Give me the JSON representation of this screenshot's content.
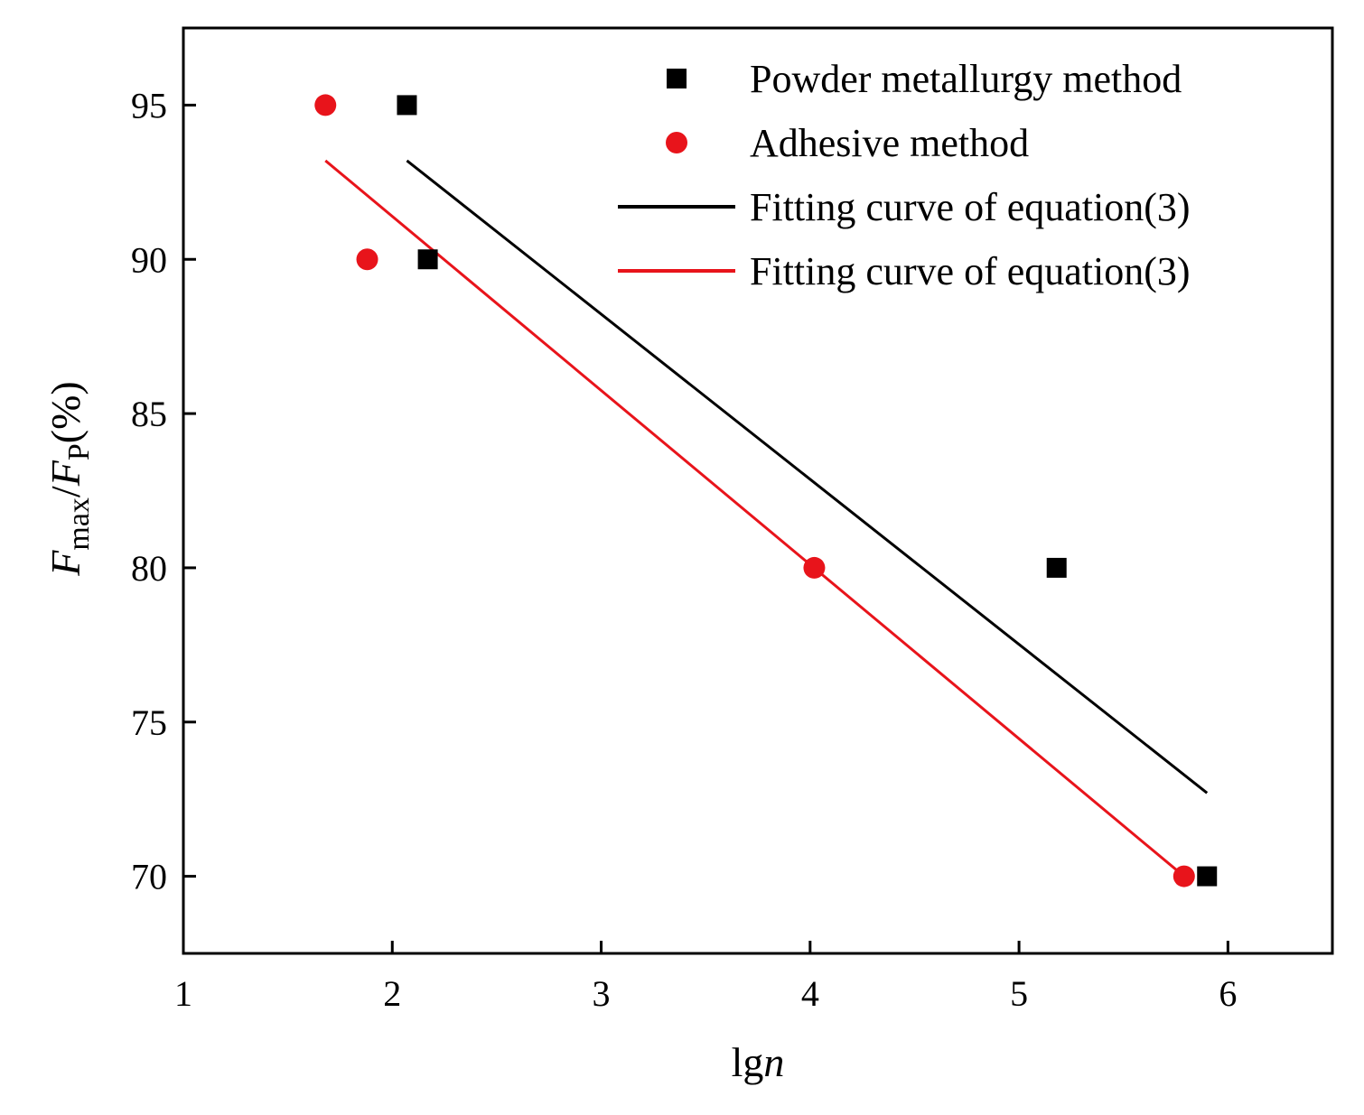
{
  "chart_data": {
    "type": "scatter",
    "title": "",
    "xlabel": {
      "main": "lg",
      "italic": "n"
    },
    "ylabel": {
      "f1": "F",
      "sub1": "max",
      "slash": "/",
      "f2": "F",
      "sub2": "P",
      "tail": "(%)"
    },
    "xlim": [
      1,
      6.5
    ],
    "ylim": [
      67.5,
      97.5
    ],
    "xticks": [
      1,
      2,
      3,
      4,
      5,
      6
    ],
    "yticks": [
      70,
      75,
      80,
      85,
      90,
      95
    ],
    "grid": false,
    "legend_position": "top-right",
    "series": [
      {
        "name": "Powder metallurgy method",
        "marker": "square",
        "color": "#000000",
        "points": [
          {
            "x": 2.07,
            "y": 95
          },
          {
            "x": 2.17,
            "y": 90
          },
          {
            "x": 5.18,
            "y": 80
          },
          {
            "x": 5.9,
            "y": 70
          }
        ]
      },
      {
        "name": "Adhesive method",
        "marker": "circle",
        "color": "#e8141b",
        "points": [
          {
            "x": 1.68,
            "y": 95
          },
          {
            "x": 1.88,
            "y": 90
          },
          {
            "x": 4.02,
            "y": 80
          },
          {
            "x": 5.79,
            "y": 70
          }
        ]
      }
    ],
    "fits": [
      {
        "name": "Fitting curve of equation(3)",
        "color": "#000000",
        "from": {
          "x": 2.07,
          "y": 93.2
        },
        "to": {
          "x": 5.9,
          "y": 72.7
        }
      },
      {
        "name": "Fitting curve of equation(3)",
        "color": "#e8141b",
        "from": {
          "x": 1.68,
          "y": 93.2
        },
        "to": {
          "x": 5.79,
          "y": 70
        }
      }
    ]
  }
}
